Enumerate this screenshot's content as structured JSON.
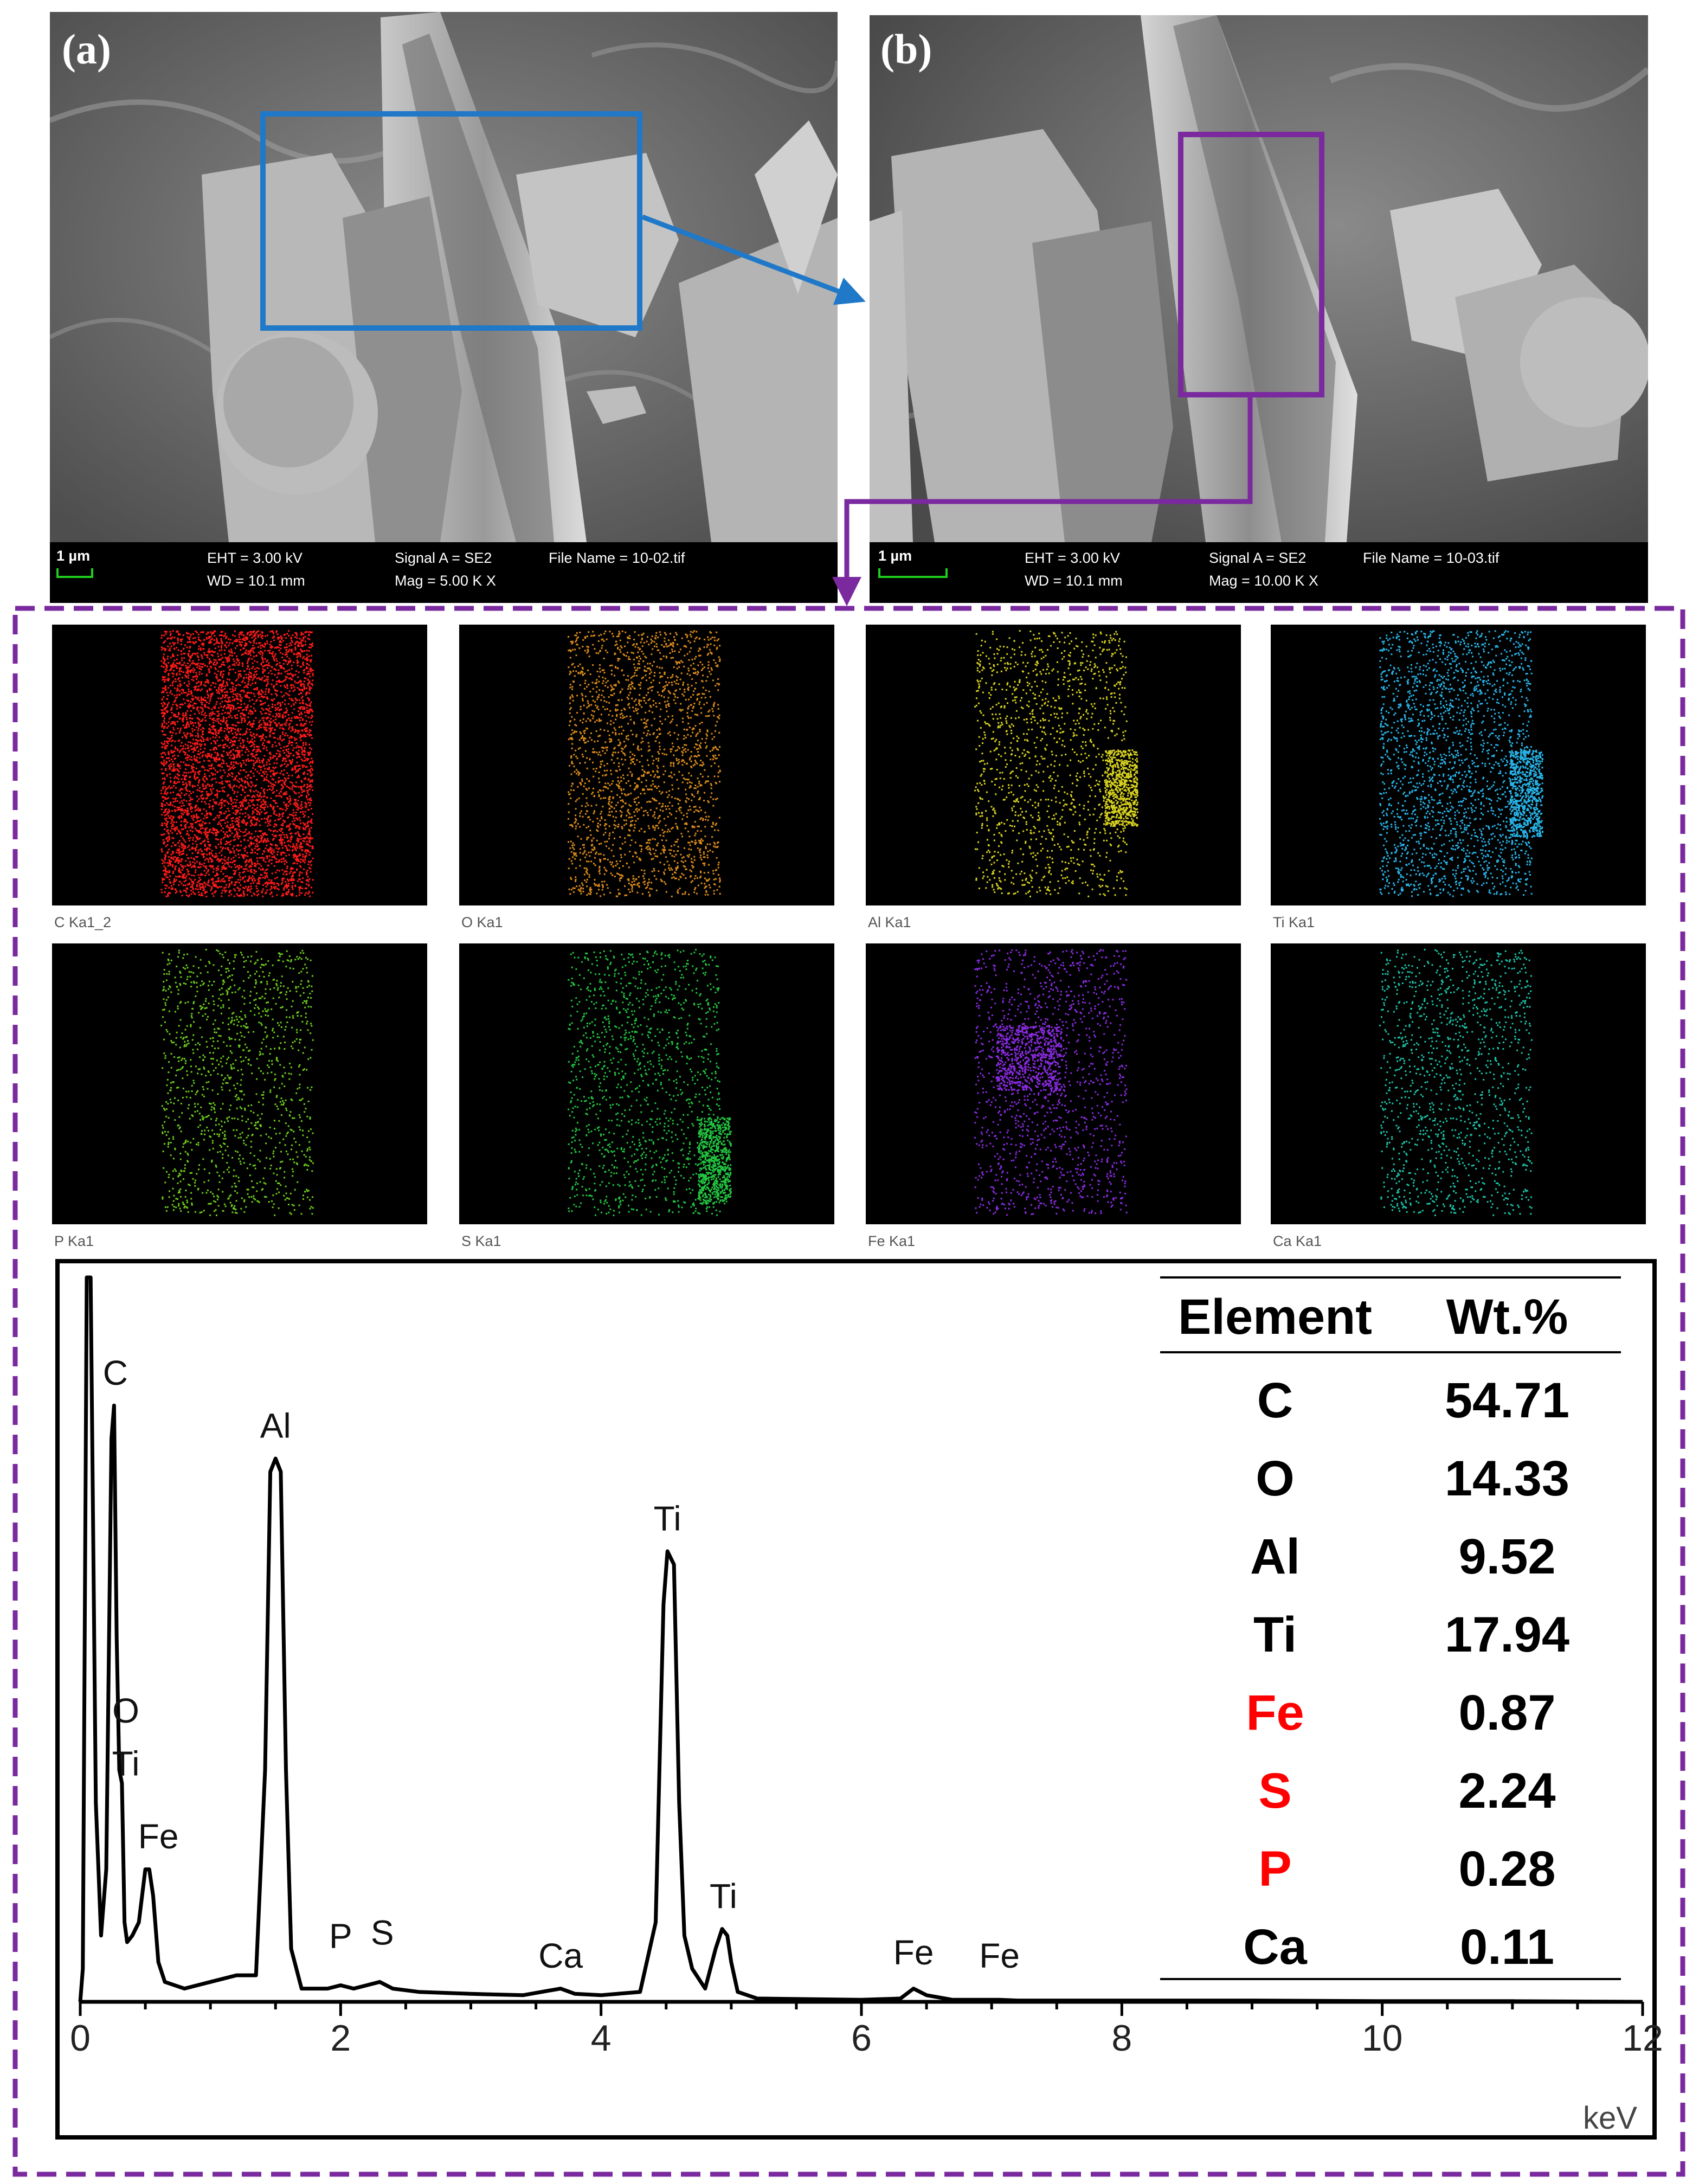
{
  "panels": {
    "a": {
      "label": "(a)",
      "scale": "1 µm",
      "eht": "EHT =  3.00 kV",
      "wd": "WD = 10.1 mm",
      "signal": "Signal A = SE2",
      "mag": "Mag =   5.00 K X",
      "file": "File Name = 10-02.tif"
    },
    "b": {
      "label": "(b)",
      "scale": "1 µm",
      "eht": "EHT =  3.00 kV",
      "wd": "WD = 10.1 mm",
      "signal": "Signal A = SE2",
      "mag": "Mag =   10.00 K X",
      "file": "File Name = 10-03.tif"
    }
  },
  "maps": [
    {
      "label": "C Ka1_2",
      "color": "#ff1a1a"
    },
    {
      "label": "O Ka1",
      "color": "#d98a1a"
    },
    {
      "label": "Al Ka1",
      "color": "#d8d21e"
    },
    {
      "label": "Ti Ka1",
      "color": "#28b4e8"
    },
    {
      "label": "P Ka1",
      "color": "#6ccc1c"
    },
    {
      "label": "S Ka1",
      "color": "#22c440"
    },
    {
      "label": "Fe Ka1",
      "color": "#8a2be2"
    },
    {
      "label": "Ca Ka1",
      "color": "#1cc4a8"
    }
  ],
  "colors": {
    "blue_box": "#1f78c8",
    "purple_box": "#7a2a9e",
    "highlight": "#ff0000"
  },
  "chart_data": {
    "type": "line",
    "xlabel": "keV",
    "xlim": [
      0,
      12
    ],
    "xticks": [
      "0",
      "2",
      "4",
      "6",
      "8",
      "10",
      "12"
    ],
    "series": [
      {
        "x": [
          0,
          0.02,
          0.05,
          0.08,
          0.12,
          0.16,
          0.2,
          0.24,
          0.26,
          0.28,
          0.3,
          0.32,
          0.34,
          0.36,
          0.4,
          0.45,
          0.5,
          0.53,
          0.56,
          0.6,
          0.65,
          0.8,
          1.0,
          1.2,
          1.35,
          1.42,
          1.46,
          1.5,
          1.54,
          1.58,
          1.62,
          1.7,
          1.9,
          2.0,
          2.1,
          2.2,
          2.3,
          2.4,
          2.6,
          3.0,
          3.4,
          3.69,
          3.8,
          4.0,
          4.3,
          4.42,
          4.48,
          4.51,
          4.56,
          4.6,
          4.64,
          4.7,
          4.8,
          4.88,
          4.93,
          4.97,
          5.0,
          5.05,
          5.2,
          5.6,
          6.0,
          6.3,
          6.4,
          6.5,
          6.7,
          7.06,
          7.2,
          8.0,
          9.0,
          10.0,
          11.0,
          12.0
        ],
        "y": [
          0,
          0.05,
          1.2,
          1.2,
          0.3,
          0.1,
          0.2,
          0.85,
          0.9,
          0.55,
          0.35,
          0.33,
          0.12,
          0.09,
          0.1,
          0.12,
          0.2,
          0.2,
          0.16,
          0.06,
          0.03,
          0.02,
          0.03,
          0.04,
          0.04,
          0.35,
          0.8,
          0.82,
          0.8,
          0.35,
          0.08,
          0.02,
          0.02,
          0.025,
          0.02,
          0.025,
          0.03,
          0.02,
          0.015,
          0.012,
          0.01,
          0.02,
          0.012,
          0.01,
          0.015,
          0.12,
          0.6,
          0.68,
          0.66,
          0.3,
          0.1,
          0.05,
          0.02,
          0.08,
          0.11,
          0.1,
          0.06,
          0.015,
          0.005,
          0.004,
          0.003,
          0.005,
          0.02,
          0.01,
          0.003,
          0.003,
          0.002,
          0.002,
          0.002,
          0.001,
          0.001,
          0.0
        ]
      }
    ],
    "peak_labels": [
      {
        "text": "C",
        "x": 0.27,
        "y": 0.92
      },
      {
        "text": "O",
        "x": 0.35,
        "y": 0.41
      },
      {
        "text": "Ti",
        "x": 0.35,
        "y": 0.33
      },
      {
        "text": "Fe",
        "x": 0.6,
        "y": 0.22
      },
      {
        "text": "Al",
        "x": 1.5,
        "y": 0.84
      },
      {
        "text": "P",
        "x": 2.0,
        "y": 0.07
      },
      {
        "text": "S",
        "x": 2.32,
        "y": 0.075
      },
      {
        "text": "Ca",
        "x": 3.69,
        "y": 0.04
      },
      {
        "text": "Ti",
        "x": 4.51,
        "y": 0.7
      },
      {
        "text": "Ti",
        "x": 4.94,
        "y": 0.13
      },
      {
        "text": "Fe",
        "x": 6.4,
        "y": 0.045
      },
      {
        "text": "Fe",
        "x": 7.06,
        "y": 0.04
      }
    ]
  },
  "table": {
    "headers": [
      "Element",
      "Wt.%"
    ],
    "rows": [
      {
        "element": "C",
        "wt": "54.71",
        "highlight": false
      },
      {
        "element": "O",
        "wt": "14.33",
        "highlight": false
      },
      {
        "element": "Al",
        "wt": "9.52",
        "highlight": false
      },
      {
        "element": "Ti",
        "wt": "17.94",
        "highlight": false
      },
      {
        "element": "Fe",
        "wt": "0.87",
        "highlight": true
      },
      {
        "element": "S",
        "wt": "2.24",
        "highlight": true
      },
      {
        "element": "P",
        "wt": "0.28",
        "highlight": true
      },
      {
        "element": "Ca",
        "wt": "0.11",
        "highlight": false
      }
    ]
  }
}
